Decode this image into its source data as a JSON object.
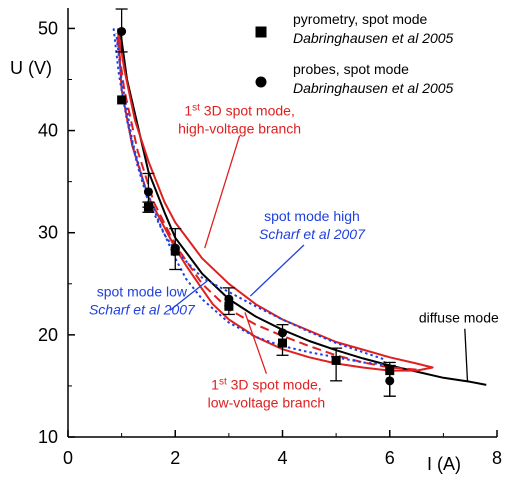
{
  "chart_data": {
    "type": "scatter",
    "xlabel": "I (A)",
    "ylabel": "U (V)",
    "xlim": [
      0,
      8
    ],
    "ylim": [
      10,
      52
    ],
    "x_ticks": [
      "0",
      "2",
      "4",
      "6",
      "8"
    ],
    "y_ticks": [
      "10",
      "20",
      "30",
      "40",
      "50"
    ],
    "legend_position": "top-right",
    "legend": [
      {
        "marker": "square",
        "label": "pyrometry, spot mode",
        "source": "Dabringhausen et al 2005"
      },
      {
        "marker": "circle",
        "label": "probes, spot mode",
        "source": "Dabringhausen et al 2005"
      }
    ],
    "series": [
      {
        "name": "pyrometry, spot mode",
        "marker": "square",
        "color": "#000000",
        "x": [
          1,
          1.5,
          2,
          3,
          4,
          5,
          6
        ],
        "y": [
          43,
          32.5,
          28.2,
          22.8,
          19.2,
          17.5,
          16.5
        ],
        "err_low": [
          0,
          0.5,
          1.8,
          0.8,
          1.2,
          2,
          2.5
        ],
        "err_high": [
          0,
          0.5,
          2.2,
          1.8,
          1.8,
          1.2,
          0.8
        ]
      },
      {
        "name": "probes, spot mode",
        "marker": "circle",
        "color": "#000000",
        "x": [
          1,
          1.5,
          2,
          3,
          4,
          5,
          6
        ],
        "y": [
          49.7,
          34,
          28.5,
          23.5,
          20.2,
          17.5,
          15.5
        ],
        "err_low": [
          2,
          1.5,
          0,
          0,
          0,
          0,
          1.5
        ],
        "err_high": [
          2.2,
          1.8,
          0,
          0,
          0,
          0,
          1.5
        ]
      }
    ],
    "curves": [
      {
        "id": "diffuse",
        "color": "#000000",
        "dash": "solid",
        "points": [
          [
            0.97,
            50
          ],
          [
            1.1,
            45
          ],
          [
            1.3,
            40.5
          ],
          [
            1.5,
            36
          ],
          [
            1.8,
            32
          ],
          [
            2,
            29.5
          ],
          [
            2.5,
            26
          ],
          [
            3,
            23.5
          ],
          [
            3.5,
            21.8
          ],
          [
            4,
            20.5
          ],
          [
            4.5,
            19.4
          ],
          [
            5,
            18.5
          ],
          [
            5.5,
            17.7
          ],
          [
            6,
            17
          ],
          [
            6.5,
            16.4
          ],
          [
            7,
            15.8
          ],
          [
            7.5,
            15.4
          ],
          [
            7.8,
            15.1
          ]
        ]
      },
      {
        "id": "3d-high",
        "color": "#e02020",
        "dash": "solid",
        "points": [
          [
            0.93,
            50
          ],
          [
            1.05,
            46
          ],
          [
            1.25,
            41
          ],
          [
            1.5,
            37
          ],
          [
            1.8,
            33
          ],
          [
            2,
            31
          ],
          [
            2.5,
            27.5
          ],
          [
            3,
            25
          ],
          [
            3.5,
            23
          ],
          [
            4,
            21.5
          ],
          [
            5,
            19.3
          ],
          [
            6,
            17.8
          ],
          [
            6.5,
            17.2
          ],
          [
            6.8,
            16.8
          ],
          [
            6.5,
            16.5
          ],
          [
            6,
            16.5
          ],
          [
            5.5,
            16.8
          ],
          [
            5,
            17.2
          ],
          [
            4.5,
            17.8
          ],
          [
            4,
            18.6
          ],
          [
            3.5,
            19.8
          ],
          [
            3,
            21.5
          ],
          [
            2.7,
            23
          ],
          [
            2.5,
            24.5
          ],
          [
            2.2,
            26.8
          ],
          [
            2,
            28.5
          ],
          [
            1.7,
            31.5
          ],
          [
            1.5,
            33.5
          ],
          [
            1.2,
            38.5
          ],
          [
            1,
            44
          ],
          [
            0.93,
            50
          ]
        ]
      },
      {
        "id": "3d-low-dashed",
        "color": "#e02020",
        "dash": "dashed",
        "points": [
          [
            0.92,
            49
          ],
          [
            1.05,
            44
          ],
          [
            1.3,
            38
          ],
          [
            1.6,
            33
          ],
          [
            2,
            28.8
          ],
          [
            2.5,
            25
          ],
          [
            3,
            22.5
          ],
          [
            3.5,
            21
          ],
          [
            4,
            19.9
          ],
          [
            4.5,
            18.9
          ],
          [
            5,
            18
          ],
          [
            5.5,
            17.3
          ],
          [
            6,
            16.8
          ],
          [
            6.5,
            16.6
          ]
        ]
      },
      {
        "id": "scharf",
        "color": "#2040e0",
        "dash": "dotted",
        "points": [
          [
            0.85,
            50
          ],
          [
            0.95,
            45.5
          ],
          [
            1.1,
            41
          ],
          [
            1.3,
            36.5
          ],
          [
            1.5,
            33
          ],
          [
            1.8,
            29.8
          ],
          [
            2,
            28.3
          ],
          [
            2.5,
            25.6
          ],
          [
            3,
            24.2
          ],
          [
            3.5,
            22.8
          ],
          [
            4,
            21.5
          ],
          [
            4.5,
            20.3
          ],
          [
            5,
            19.2
          ],
          [
            5.5,
            18.3
          ],
          [
            5.9,
            17.6
          ],
          [
            5.9,
            17.1
          ],
          [
            5.5,
            17.3
          ],
          [
            5,
            17.8
          ],
          [
            4.5,
            18.3
          ],
          [
            4,
            18.9
          ],
          [
            3.5,
            19.8
          ],
          [
            3,
            21.2
          ],
          [
            2.5,
            23.5
          ],
          [
            2.2,
            25.5
          ],
          [
            2,
            27.5
          ],
          [
            1.7,
            31
          ],
          [
            1.4,
            35
          ],
          [
            1.2,
            39
          ],
          [
            1,
            45
          ],
          [
            0.9,
            49.5
          ]
        ]
      }
    ],
    "annotations": [
      {
        "id": "high-voltage",
        "color": "#e02020",
        "lines": [
          {
            "pre": "1",
            "sup": "st",
            "post": " 3D spot mode,"
          },
          {
            "pre": "high-voltage branch"
          }
        ],
        "anchor": [
          3.2,
          39.5
        ],
        "target": [
          2.55,
          28.5
        ]
      },
      {
        "id": "low-voltage",
        "color": "#e02020",
        "lines": [
          {
            "pre": "1",
            "sup": "st",
            "post": " 3D spot mode,"
          },
          {
            "pre": "low-voltage branch"
          }
        ],
        "anchor": [
          3.7,
          16.2
        ],
        "target": [
          3.3,
          22.2
        ]
      },
      {
        "id": "scharf-high",
        "color": "#2040e0",
        "lines": [
          {
            "pre": "spot mode high"
          },
          {
            "pre": "Scharf et al 2007",
            "italic": true
          }
        ],
        "anchor": [
          4.4,
          28.8
        ],
        "target": [
          3.4,
          23.8
        ]
      },
      {
        "id": "scharf-low",
        "color": "#2040e0",
        "lines": [
          {
            "pre": "spot mode low"
          },
          {
            "pre": "Scharf et al 2007",
            "italic": true
          }
        ],
        "anchor": [
          1.9,
          22.4
        ],
        "target": [
          2.6,
          25.3
        ]
      },
      {
        "id": "diffuse-mode",
        "color": "#000000",
        "lines": [
          {
            "pre": "diffuse mode"
          }
        ],
        "anchor": [
          7.4,
          20.6
        ],
        "target": [
          7.45,
          15.4
        ]
      }
    ]
  }
}
